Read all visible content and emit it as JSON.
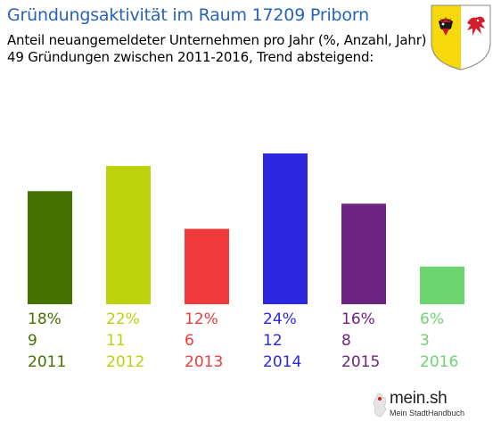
{
  "header": {
    "title": "Gründungsaktivität im Raum 17209 Priborn",
    "subtitle_line1": "Anteil neuangemeldeter Unternehmen pro Jahr (%, Anzahl, Jahr)",
    "subtitle_line2": "49 Gründungen zwischen 2011-2016, Trend absteigend:"
  },
  "brand": {
    "name": "mein.sh",
    "tagline": "Mein StadtHandbuch"
  },
  "chart_data": {
    "type": "bar",
    "categories": [
      "2011",
      "2012",
      "2013",
      "2014",
      "2015",
      "2016"
    ],
    "values": [
      9,
      11,
      6,
      12,
      8,
      3
    ],
    "percent_labels": [
      "18%",
      "22%",
      "12%",
      "24%",
      "16%",
      "6%"
    ],
    "count_labels": [
      "9",
      "11",
      "6",
      "12",
      "8",
      "3"
    ],
    "colors": [
      "#437200",
      "#bcd20a",
      "#ef3b3b",
      "#2b28e0",
      "#6c2382",
      "#6ed470"
    ],
    "ylim": [
      0,
      12
    ]
  }
}
